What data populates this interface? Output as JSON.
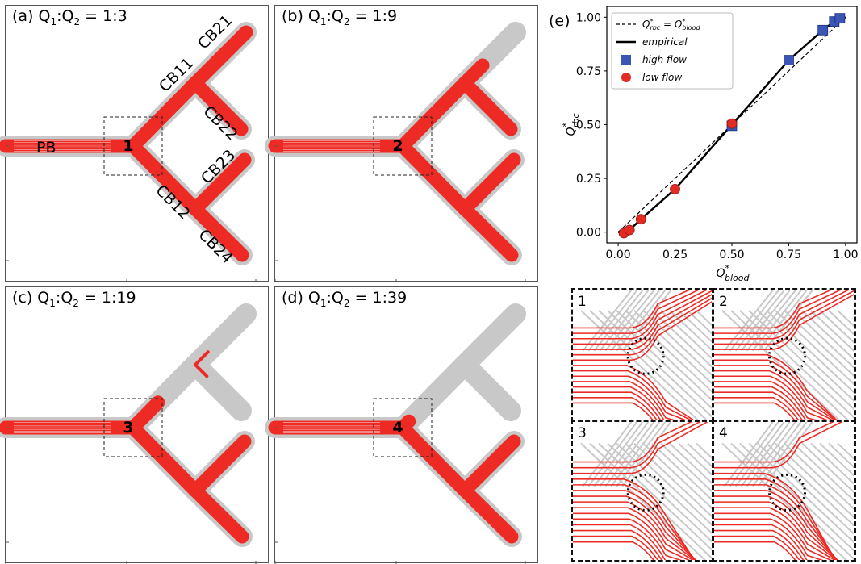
{
  "panels": [
    {
      "id": "a",
      "prefix": "(a) Q",
      "s1": "1",
      "mid": ":Q",
      "s2": "2",
      "ratio": " = 1:3",
      "junction": "1",
      "labels": {
        "pb": "PB",
        "cb11": "CB11",
        "cb12": "CB12",
        "cb21": "CB21",
        "cb22": "CB22",
        "cb23": "CB23",
        "cb24": "CB24"
      }
    },
    {
      "id": "b",
      "prefix": "(b) Q",
      "s1": "1",
      "mid": ":Q",
      "s2": "2",
      "ratio": " = 1:9",
      "junction": "2"
    },
    {
      "id": "c",
      "prefix": "(c) Q",
      "s1": "1",
      "mid": ":Q",
      "s2": "2",
      "ratio": " = 1:19",
      "junction": "3"
    },
    {
      "id": "d",
      "prefix": "(d) Q",
      "s1": "1",
      "mid": ":Q",
      "s2": "2",
      "ratio": " = 1:39",
      "junction": "4"
    }
  ],
  "colors": {
    "vessel": "#c8c8c8",
    "rbc": "#ee2a24",
    "high_flow": "#3a55b4",
    "low_flow": "#e32b24"
  },
  "chart_data": {
    "type": "scatter",
    "panel_label": "(e)",
    "xlabel_main": "Q",
    "xlabel_sup": "*",
    "xlabel_sub": "blood",
    "ylabel_main": "Q",
    "ylabel_sup": "*",
    "ylabel_sub": "rbc",
    "xlim": [
      -0.05,
      1.05
    ],
    "ylim": [
      -0.05,
      1.05
    ],
    "xticks": [
      0.0,
      0.25,
      0.5,
      0.75,
      1.0
    ],
    "yticks": [
      0.0,
      0.25,
      0.5,
      0.75,
      1.0
    ],
    "xtick_labels": [
      "0.00",
      "0.25",
      "0.50",
      "0.75",
      "1.00"
    ],
    "ytick_labels": [
      "0.00",
      "0.25",
      "0.50",
      "0.75",
      "1.00"
    ],
    "legend": {
      "identity": {
        "a": "Q",
        "a_sup": "*",
        "a_sub": "rbc",
        "eq": " = ",
        "b": "Q",
        "b_sup": "*",
        "b_sub": "blood"
      },
      "empirical": "empirical",
      "high": "high flow",
      "low": "low flow"
    },
    "legend_position": "top-left",
    "series": [
      {
        "name": "high flow",
        "marker": "square",
        "x": [
          0.5,
          0.75,
          0.9,
          0.95,
          0.975
        ],
        "y": [
          0.495,
          0.8,
          0.94,
          0.98,
          0.995
        ]
      },
      {
        "name": "low flow",
        "marker": "circle",
        "x": [
          0.025,
          0.05,
          0.1,
          0.25,
          0.5
        ],
        "y": [
          -0.005,
          0.01,
          0.06,
          0.2,
          0.505
        ]
      },
      {
        "name": "empirical",
        "style": "solid",
        "x": [
          0.0,
          0.025,
          0.05,
          0.1,
          0.25,
          0.5,
          0.75,
          0.9,
          0.95,
          1.0
        ],
        "y": [
          0.0,
          0.0,
          0.01,
          0.06,
          0.2,
          0.5,
          0.8,
          0.94,
          0.98,
          1.0
        ]
      },
      {
        "name": "identity",
        "style": "dashed",
        "x": [
          0.0,
          1.0
        ],
        "y": [
          0.0,
          1.0
        ]
      }
    ]
  },
  "insets": [
    "1",
    "2",
    "3",
    "4"
  ]
}
